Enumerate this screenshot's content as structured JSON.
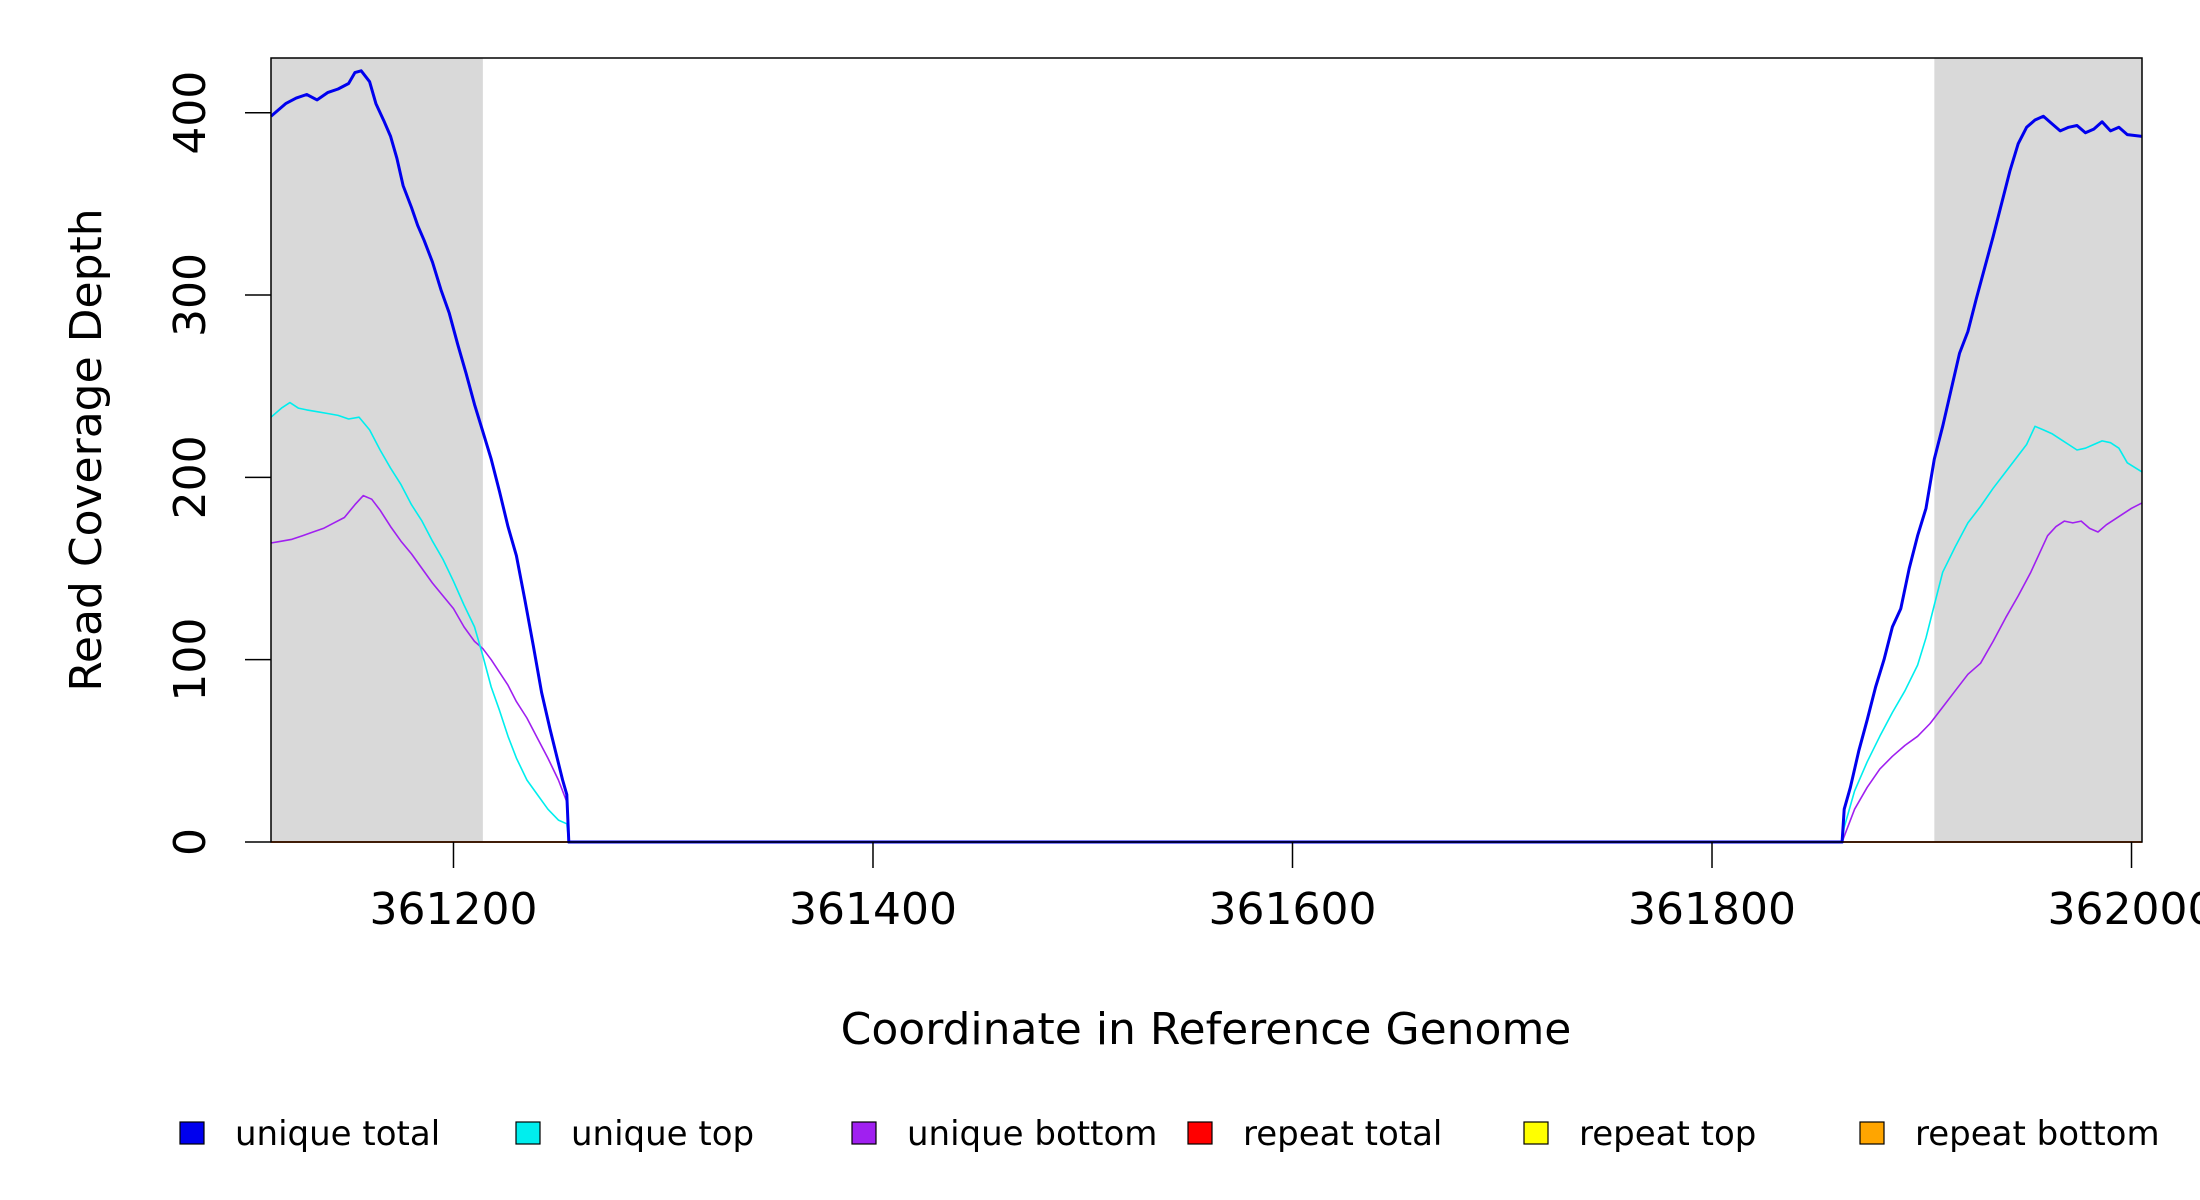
{
  "chart_data": {
    "type": "line",
    "xlabel": "Coordinate in Reference Genome",
    "ylabel": "Read Coverage Depth",
    "xlim": [
      361113,
      362005
    ],
    "ylim": [
      0,
      430
    ],
    "x_ticks": [
      361200,
      361400,
      361600,
      361800,
      362000
    ],
    "x_tick_labels": [
      "361200",
      "361400",
      "361600",
      "361800",
      "362000"
    ],
    "y_ticks": [
      0,
      100,
      200,
      300,
      400
    ],
    "y_tick_labels": [
      "0",
      "100",
      "200",
      "300",
      "400"
    ],
    "shaded_regions": [
      [
        361113,
        361214
      ],
      [
        361906,
        362005
      ]
    ],
    "shade_color": "#d9d9d9",
    "grid": false,
    "legend_position": "bottom",
    "series": [
      {
        "name": "unique total",
        "color": "#0000ee",
        "points": [
          [
            361113,
            398
          ],
          [
            361120,
            405
          ],
          [
            361125,
            408
          ],
          [
            361130,
            410
          ],
          [
            361135,
            407
          ],
          [
            361140,
            411
          ],
          [
            361145,
            413
          ],
          [
            361150,
            416
          ],
          [
            361153,
            422
          ],
          [
            361156,
            423
          ],
          [
            361160,
            417
          ],
          [
            361163,
            405
          ],
          [
            361167,
            395
          ],
          [
            361170,
            387
          ],
          [
            361173,
            375
          ],
          [
            361176,
            360
          ],
          [
            361180,
            348
          ],
          [
            361183,
            338
          ],
          [
            361186,
            330
          ],
          [
            361190,
            318
          ],
          [
            361194,
            303
          ],
          [
            361198,
            290
          ],
          [
            361202,
            273
          ],
          [
            361206,
            257
          ],
          [
            361210,
            240
          ],
          [
            361214,
            225
          ],
          [
            361218,
            210
          ],
          [
            361222,
            192
          ],
          [
            361226,
            173
          ],
          [
            361230,
            157
          ],
          [
            361234,
            133
          ],
          [
            361238,
            108
          ],
          [
            361242,
            82
          ],
          [
            361246,
            62
          ],
          [
            361249,
            48
          ],
          [
            361252,
            34
          ],
          [
            361254,
            26
          ],
          [
            361255,
            0
          ],
          [
            361862,
            0
          ],
          [
            361863,
            18
          ],
          [
            361866,
            30
          ],
          [
            361870,
            50
          ],
          [
            361874,
            67
          ],
          [
            361878,
            85
          ],
          [
            361882,
            100
          ],
          [
            361886,
            118
          ],
          [
            361890,
            128
          ],
          [
            361894,
            150
          ],
          [
            361898,
            168
          ],
          [
            361902,
            183
          ],
          [
            361906,
            210
          ],
          [
            361910,
            228
          ],
          [
            361914,
            248
          ],
          [
            361918,
            268
          ],
          [
            361922,
            280
          ],
          [
            361926,
            298
          ],
          [
            361930,
            315
          ],
          [
            361934,
            332
          ],
          [
            361938,
            350
          ],
          [
            361942,
            368
          ],
          [
            361946,
            383
          ],
          [
            361950,
            392
          ],
          [
            361954,
            396
          ],
          [
            361958,
            398
          ],
          [
            361962,
            394
          ],
          [
            361966,
            390
          ],
          [
            361970,
            392
          ],
          [
            361974,
            393
          ],
          [
            361978,
            389
          ],
          [
            361982,
            391
          ],
          [
            361986,
            395
          ],
          [
            361990,
            390
          ],
          [
            361994,
            392
          ],
          [
            361998,
            388
          ],
          [
            362005,
            387
          ]
        ]
      },
      {
        "name": "unique top",
        "color": "#00eeee",
        "points": [
          [
            361113,
            233
          ],
          [
            361118,
            238
          ],
          [
            361122,
            241
          ],
          [
            361126,
            238
          ],
          [
            361130,
            237
          ],
          [
            361135,
            236
          ],
          [
            361140,
            235
          ],
          [
            361145,
            234
          ],
          [
            361150,
            232
          ],
          [
            361155,
            233
          ],
          [
            361160,
            226
          ],
          [
            361165,
            215
          ],
          [
            361170,
            205
          ],
          [
            361175,
            196
          ],
          [
            361180,
            185
          ],
          [
            361185,
            176
          ],
          [
            361190,
            165
          ],
          [
            361195,
            155
          ],
          [
            361200,
            143
          ],
          [
            361205,
            130
          ],
          [
            361210,
            118
          ],
          [
            361214,
            102
          ],
          [
            361218,
            85
          ],
          [
            361222,
            72
          ],
          [
            361226,
            58
          ],
          [
            361230,
            46
          ],
          [
            361235,
            34
          ],
          [
            361240,
            26
          ],
          [
            361245,
            18
          ],
          [
            361250,
            12
          ],
          [
            361254,
            10
          ],
          [
            361255,
            0
          ],
          [
            361862,
            0
          ],
          [
            361863,
            8
          ],
          [
            361868,
            28
          ],
          [
            361874,
            44
          ],
          [
            361880,
            58
          ],
          [
            361886,
            71
          ],
          [
            361892,
            83
          ],
          [
            361898,
            97
          ],
          [
            361902,
            112
          ],
          [
            361906,
            130
          ],
          [
            361910,
            148
          ],
          [
            361916,
            162
          ],
          [
            361922,
            175
          ],
          [
            361928,
            184
          ],
          [
            361934,
            194
          ],
          [
            361940,
            203
          ],
          [
            361946,
            212
          ],
          [
            361950,
            218
          ],
          [
            361954,
            228
          ],
          [
            361958,
            226
          ],
          [
            361962,
            224
          ],
          [
            361966,
            221
          ],
          [
            361970,
            218
          ],
          [
            361974,
            215
          ],
          [
            361978,
            216
          ],
          [
            361982,
            218
          ],
          [
            361986,
            220
          ],
          [
            361990,
            219
          ],
          [
            361994,
            216
          ],
          [
            361998,
            208
          ],
          [
            362005,
            203
          ]
        ]
      },
      {
        "name": "unique bottom",
        "color": "#a020f0",
        "points": [
          [
            361113,
            164
          ],
          [
            361118,
            165
          ],
          [
            361123,
            166
          ],
          [
            361128,
            168
          ],
          [
            361133,
            170
          ],
          [
            361138,
            172
          ],
          [
            361143,
            175
          ],
          [
            361148,
            178
          ],
          [
            361153,
            185
          ],
          [
            361157,
            190
          ],
          [
            361161,
            188
          ],
          [
            361165,
            182
          ],
          [
            361170,
            173
          ],
          [
            361175,
            165
          ],
          [
            361180,
            158
          ],
          [
            361185,
            150
          ],
          [
            361190,
            142
          ],
          [
            361195,
            135
          ],
          [
            361200,
            128
          ],
          [
            361205,
            118
          ],
          [
            361210,
            110
          ],
          [
            361214,
            106
          ],
          [
            361218,
            100
          ],
          [
            361222,
            93
          ],
          [
            361226,
            86
          ],
          [
            361230,
            77
          ],
          [
            361235,
            68
          ],
          [
            361240,
            57
          ],
          [
            361245,
            46
          ],
          [
            361250,
            34
          ],
          [
            361254,
            22
          ],
          [
            361255,
            0
          ],
          [
            361862,
            0
          ],
          [
            361864,
            6
          ],
          [
            361868,
            18
          ],
          [
            361874,
            30
          ],
          [
            361880,
            40
          ],
          [
            361886,
            47
          ],
          [
            361892,
            53
          ],
          [
            361898,
            58
          ],
          [
            361904,
            65
          ],
          [
            361910,
            74
          ],
          [
            361916,
            83
          ],
          [
            361922,
            92
          ],
          [
            361928,
            98
          ],
          [
            361934,
            110
          ],
          [
            361940,
            123
          ],
          [
            361946,
            135
          ],
          [
            361952,
            148
          ],
          [
            361956,
            158
          ],
          [
            361960,
            168
          ],
          [
            361964,
            173
          ],
          [
            361968,
            176
          ],
          [
            361972,
            175
          ],
          [
            361976,
            176
          ],
          [
            361980,
            172
          ],
          [
            361984,
            170
          ],
          [
            361988,
            174
          ],
          [
            361992,
            177
          ],
          [
            361996,
            180
          ],
          [
            362000,
            183
          ],
          [
            362005,
            186
          ]
        ]
      },
      {
        "name": "repeat total",
        "color": "#ff0000",
        "points": [
          [
            361113,
            0
          ],
          [
            362005,
            0
          ]
        ]
      },
      {
        "name": "repeat top",
        "color": "#ffff00",
        "points": [
          [
            361113,
            0
          ],
          [
            362005,
            0
          ]
        ]
      },
      {
        "name": "repeat bottom",
        "color": "#ffa500",
        "points": [
          [
            361113,
            0
          ],
          [
            362005,
            0
          ]
        ]
      }
    ]
  }
}
